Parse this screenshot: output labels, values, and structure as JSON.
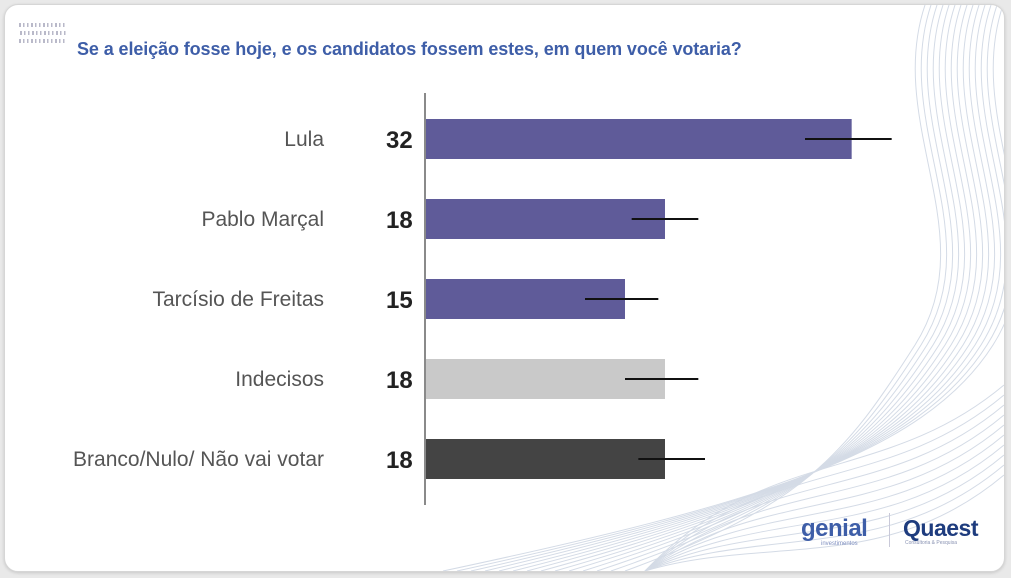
{
  "chart_data": {
    "type": "bar",
    "orientation": "horizontal",
    "title": "Se a eleição fosse hoje, e os candidatos fossem estes, em quem você votaria?",
    "categories": [
      "Lula",
      "Pablo Marçal",
      "Tarcísio de Freitas",
      "Indecisos",
      "Branco/Nulo/ Não vai votar"
    ],
    "values": [
      32,
      18,
      15,
      18,
      18
    ],
    "value_labels": [
      "32",
      "18",
      "15",
      "18",
      "18"
    ],
    "error_bars": [
      [
        28.5,
        35
      ],
      [
        15.5,
        20.5
      ],
      [
        12,
        17.5
      ],
      [
        15,
        20.5
      ],
      [
        16,
        21
      ]
    ],
    "colors": [
      "#5f5b99",
      "#5f5b99",
      "#5f5b99",
      "#c9c9c9",
      "#444444"
    ],
    "xlim": [
      0,
      42
    ],
    "grid": false,
    "legend": "none"
  },
  "logos": {
    "genial": "genial",
    "genial_sub": "investimentos",
    "quaest": "Quaest",
    "quaest_sub": "Consultoria & Pesquisa"
  }
}
